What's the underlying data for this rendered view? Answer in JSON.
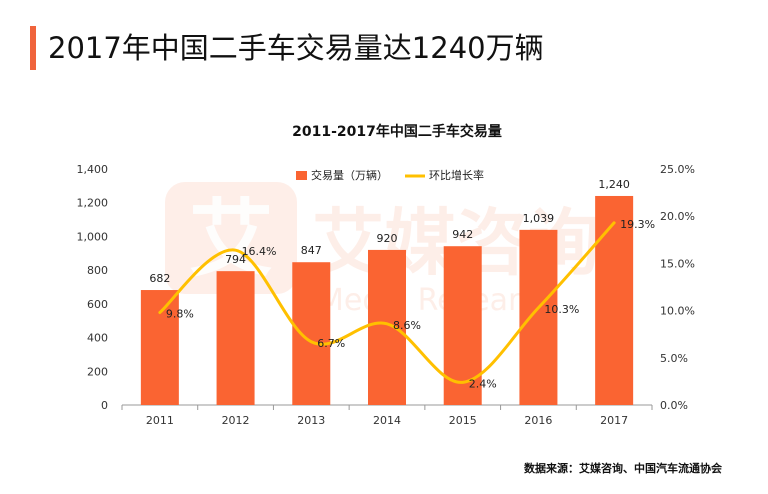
{
  "page": {
    "title": "2017年中国二手车交易量达1240万辆",
    "accent_color": "#f0643c",
    "source_note": "数据来源：艾媒咨询、中国汽车流通协会"
  },
  "watermark": {
    "text": "艾媒咨询",
    "subtext": "Media Research",
    "logo_glyph": "艾"
  },
  "chart_data": {
    "type": "bar",
    "title": "2011-2017年中国二手车交易量",
    "categories": [
      "2011",
      "2012",
      "2013",
      "2014",
      "2015",
      "2016",
      "2017"
    ],
    "series": [
      {
        "name": "交易量（万辆）",
        "type": "bar",
        "axis": "left",
        "color": "#fa6432",
        "values": [
          682,
          794,
          847,
          920,
          942,
          1039,
          1240
        ],
        "data_labels": [
          "682",
          "794",
          "847",
          "920",
          "942",
          "1,039",
          "1,240"
        ]
      },
      {
        "name": "环比增长率",
        "type": "line",
        "axis": "right",
        "color": "#ffc000",
        "smooth": true,
        "values": [
          9.8,
          16.4,
          6.7,
          8.6,
          2.4,
          10.3,
          19.3
        ],
        "data_labels": [
          "9.8%",
          "16.4%",
          "6.7%",
          "8.6%",
          "2.4%",
          "10.3%",
          "19.3%"
        ]
      }
    ],
    "y_left": {
      "min": 0,
      "max": 1400,
      "ticks": [
        "0",
        "200",
        "400",
        "600",
        "800",
        "1,000",
        "1,200",
        "1,400"
      ]
    },
    "y_right": {
      "min": 0,
      "max": 25,
      "ticks": [
        "0.0%",
        "5.0%",
        "10.0%",
        "15.0%",
        "20.0%",
        "25.0%"
      ]
    },
    "grid": false,
    "legend_position": "top-center"
  }
}
